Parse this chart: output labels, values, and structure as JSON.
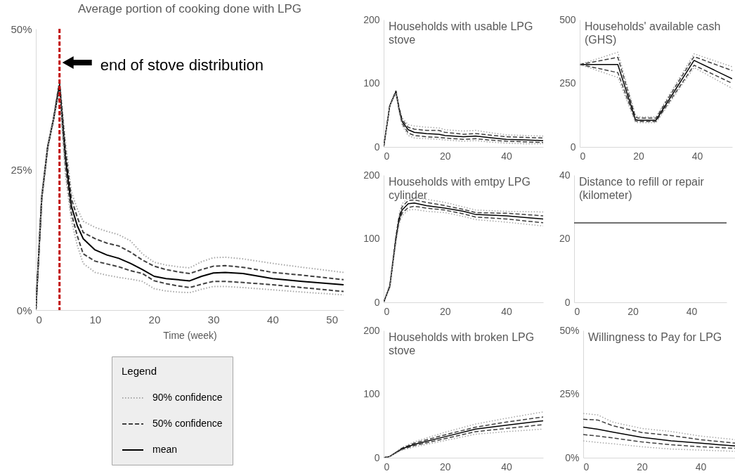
{
  "chart_data": [
    {
      "type": "line",
      "title": "Average portion of cooking done with LPG",
      "xlabel": "Time (week)",
      "legend_title": "Legend",
      "legend": "bottom",
      "xlim": [
        0,
        52
      ],
      "xticks": [
        0,
        10,
        20,
        30,
        40,
        50
      ],
      "ylim": [
        0,
        50
      ],
      "yticks": [
        {
          "value": 0,
          "label": "0%"
        },
        {
          "value": 25,
          "label": "25%"
        },
        {
          "value": 50,
          "label": "50%"
        }
      ],
      "x": [
        0,
        1,
        2,
        3,
        4,
        5,
        6,
        7,
        8,
        10,
        12,
        14,
        16,
        18,
        20,
        22,
        24,
        26,
        28,
        30,
        32,
        35,
        40,
        45,
        52
      ],
      "ref_lines": [
        {
          "axis": "x",
          "value": 4,
          "color": "#c00000",
          "line_style": "dashed"
        }
      ],
      "annotations": [
        {
          "text": "end of stove distribution",
          "x": 4,
          "y": 43.5
        }
      ],
      "series": [
        {
          "name": "90% confidence",
          "color": "#a6a6a6",
          "line_style": "dotted",
          "values": [
            0,
            20,
            29,
            34,
            41,
            30,
            21,
            18,
            15.8,
            14.7,
            14,
            13.4,
            12.3,
            10,
            8.5,
            8,
            7.7,
            7.5,
            8.6,
            9.3,
            9.4,
            9.1,
            8.3,
            7.6,
            6.7
          ]
        },
        {
          "name": "50% confidence",
          "color": "#404040",
          "line_style": "dashed",
          "values": [
            0,
            20,
            29,
            34,
            40.5,
            28.5,
            19.8,
            16.5,
            13.8,
            12.7,
            11.9,
            11.4,
            10.3,
            8.9,
            7.8,
            7.2,
            6.8,
            6.5,
            7.2,
            7.8,
            7.9,
            7.6,
            6.7,
            6.2,
            5.4
          ]
        },
        {
          "name": "mean",
          "color": "#000000",
          "line_style": "solid",
          "values": [
            0,
            20,
            29,
            34,
            40,
            27,
            18.5,
            15,
            12.7,
            10.7,
            9.8,
            9.2,
            8.3,
            7.2,
            6,
            5.6,
            5.4,
            5.2,
            6,
            6.6,
            6.7,
            6.5,
            5.6,
            5.1,
            4.5
          ]
        },
        {
          "color": "#404040",
          "line_style": "dashed",
          "values": [
            0,
            20,
            29,
            34,
            39.5,
            25.5,
            17.2,
            13.2,
            10,
            8.7,
            8.2,
            7.7,
            7,
            6.5,
            5.2,
            4.7,
            4.3,
            4,
            4.6,
            5.1,
            5.1,
            4.9,
            4.5,
            4,
            3.3
          ]
        },
        {
          "color": "#a6a6a6",
          "line_style": "dotted",
          "values": [
            0,
            20,
            29,
            34,
            39,
            24,
            16,
            11.5,
            8.3,
            6.7,
            6.2,
            5.8,
            5.5,
            5.1,
            3.8,
            3.4,
            3.2,
            3.1,
            3.7,
            4.2,
            4.2,
            4,
            3.6,
            3.2,
            2.7
          ]
        }
      ]
    },
    {
      "type": "line",
      "title": "Households with usable LPG stove",
      "xlim": [
        0,
        52
      ],
      "xticks": [
        0,
        20,
        40
      ],
      "ylim": [
        0,
        200
      ],
      "yticks": [
        0,
        100,
        200
      ],
      "x": [
        0,
        2,
        4,
        5,
        6,
        8,
        10,
        14,
        18,
        20,
        26,
        30,
        34,
        40,
        46,
        52
      ],
      "series": [
        {
          "color": "#a6a6a6",
          "line_style": "dotted",
          "values": [
            0,
            65,
            89,
            64,
            46,
            35,
            33,
            31,
            30,
            27,
            25,
            26,
            23,
            19,
            18,
            17
          ]
        },
        {
          "color": "#404040",
          "line_style": "dashed",
          "values": [
            0,
            65,
            88,
            62,
            43,
            31,
            28,
            26,
            26,
            23,
            20,
            21,
            19,
            16,
            15,
            14
          ]
        },
        {
          "color": "#000000",
          "line_style": "solid",
          "values": [
            0,
            65,
            87,
            60,
            40,
            27,
            23,
            21,
            20,
            18,
            16,
            17,
            15,
            12,
            11,
            10
          ]
        },
        {
          "color": "#404040",
          "line_style": "dashed",
          "values": [
            0,
            65,
            86,
            58,
            37,
            22,
            18,
            16,
            15,
            14,
            12,
            13,
            11,
            9,
            8,
            7
          ]
        },
        {
          "color": "#a6a6a6",
          "line_style": "dotted",
          "values": [
            0,
            65,
            85,
            56,
            34,
            18,
            14,
            13,
            12,
            11,
            9,
            10,
            8,
            6,
            5,
            5
          ]
        }
      ]
    },
    {
      "type": "line",
      "title": "Households' available cash (GHS)",
      "xlim": [
        0,
        52
      ],
      "xticks": [
        0,
        20,
        40
      ],
      "ylim": [
        0,
        500
      ],
      "yticks": [
        0,
        250,
        500
      ],
      "x": [
        0,
        13,
        19,
        20,
        26,
        39,
        52
      ],
      "series": [
        {
          "color": "#a6a6a6",
          "line_style": "dotted",
          "values": [
            324,
            372,
            125,
            118,
            118,
            366,
            315
          ]
        },
        {
          "color": "#404040",
          "line_style": "dashed",
          "values": [
            324,
            352,
            118,
            113,
            113,
            355,
            300
          ]
        },
        {
          "color": "#000000",
          "line_style": "solid",
          "values": [
            324,
            324,
            108,
            105,
            105,
            340,
            268
          ]
        },
        {
          "color": "#404040",
          "line_style": "dashed",
          "values": [
            324,
            292,
            102,
            100,
            100,
            321,
            250
          ]
        },
        {
          "color": "#a6a6a6",
          "line_style": "dotted",
          "values": [
            324,
            273,
            97,
            95,
            95,
            312,
            230
          ]
        }
      ]
    },
    {
      "type": "line",
      "title": "Households with emtpy LPG cylinder",
      "xlim": [
        0,
        52
      ],
      "xticks": [
        0,
        20,
        40
      ],
      "ylim": [
        0,
        200
      ],
      "yticks": [
        0,
        100,
        200
      ],
      "x": [
        0,
        2,
        4,
        5,
        6,
        8,
        10,
        14,
        20,
        26,
        30,
        40,
        52
      ],
      "series": [
        {
          "color": "#a6a6a6",
          "line_style": "dotted",
          "values": [
            0,
            27,
            106,
            138,
            155,
            164,
            165,
            162,
            157,
            150,
            145,
            143,
            142
          ]
        },
        {
          "color": "#404040",
          "line_style": "dashed",
          "values": [
            0,
            26,
            103,
            134,
            150,
            160,
            161,
            157,
            152,
            146,
            141,
            140,
            136
          ]
        },
        {
          "color": "#000000",
          "line_style": "solid",
          "values": [
            0,
            25,
            100,
            130,
            145,
            155,
            156,
            152,
            148,
            143,
            138,
            136,
            131
          ]
        },
        {
          "color": "#404040",
          "line_style": "dashed",
          "values": [
            0,
            24,
            97,
            126,
            140,
            149,
            151,
            148,
            145,
            139,
            134,
            131,
            125
          ]
        },
        {
          "color": "#a6a6a6",
          "line_style": "dotted",
          "values": [
            0,
            23,
            94,
            122,
            136,
            145,
            146,
            143,
            141,
            135,
            130,
            126,
            120
          ]
        }
      ]
    },
    {
      "type": "line",
      "title": "Distance to refill or repair (kilometer)",
      "xlim": [
        0,
        52
      ],
      "xticks": [
        0,
        20,
        40
      ],
      "ylim": [
        0,
        40
      ],
      "yticks": [
        0,
        20,
        40
      ],
      "x": [
        0,
        52
      ],
      "series": [
        {
          "color": "#404040",
          "line_style": "solid",
          "values": [
            25,
            25
          ]
        }
      ]
    },
    {
      "type": "line",
      "title": "Households with broken LPG stove",
      "xlim": [
        0,
        52
      ],
      "xticks": [
        0,
        20,
        40
      ],
      "ylim": [
        0,
        200
      ],
      "yticks": [
        0,
        100,
        200
      ],
      "x": [
        0,
        2,
        4,
        6,
        10,
        20,
        30,
        40,
        52
      ],
      "series": [
        {
          "color": "#a6a6a6",
          "line_style": "dotted",
          "values": [
            0,
            2,
            9,
            16,
            25,
            40,
            53,
            62,
            72
          ]
        },
        {
          "color": "#404040",
          "line_style": "dashed",
          "values": [
            0,
            2,
            8,
            15,
            23,
            36,
            48,
            56,
            64
          ]
        },
        {
          "color": "#000000",
          "line_style": "solid",
          "values": [
            0,
            2,
            8,
            14,
            21,
            33,
            45,
            51,
            58
          ]
        },
        {
          "color": "#404040",
          "line_style": "dashed",
          "values": [
            0,
            2,
            8,
            13,
            19,
            30,
            41,
            46,
            52
          ]
        },
        {
          "color": "#a6a6a6",
          "line_style": "dotted",
          "values": [
            0,
            2,
            7,
            12,
            17,
            27,
            37,
            41,
            45
          ]
        }
      ]
    },
    {
      "type": "line",
      "title": "Willingness to Pay for LPG",
      "xlim": [
        0,
        52
      ],
      "xticks": [
        0,
        20,
        40
      ],
      "ylim": [
        0,
        50
      ],
      "yticks": [
        {
          "value": 0,
          "label": "0%"
        },
        {
          "value": 25,
          "label": "25%"
        },
        {
          "value": 50,
          "label": "50%"
        }
      ],
      "x": [
        0,
        5,
        10,
        20,
        30,
        40,
        52
      ],
      "series": [
        {
          "color": "#a6a6a6",
          "line_style": "dotted",
          "values": [
            17.4,
            16.8,
            14,
            11.5,
            10.3,
            8.5,
            7.1
          ]
        },
        {
          "color": "#404040",
          "line_style": "dashed",
          "values": [
            15.1,
            14.8,
            12.6,
            9.9,
            8.7,
            7.1,
            5.7
          ]
        },
        {
          "color": "#000000",
          "line_style": "solid",
          "values": [
            12,
            11.2,
            10.1,
            8,
            6.6,
            5.7,
            4.6
          ]
        },
        {
          "color": "#404040",
          "line_style": "dashed",
          "values": [
            9.1,
            8.5,
            7.8,
            6.2,
            5.1,
            4.3,
            3.7
          ]
        },
        {
          "color": "#a6a6a6",
          "line_style": "dotted",
          "values": [
            6.6,
            6,
            5.5,
            4.3,
            3.4,
            3,
            2.5
          ]
        }
      ]
    }
  ]
}
